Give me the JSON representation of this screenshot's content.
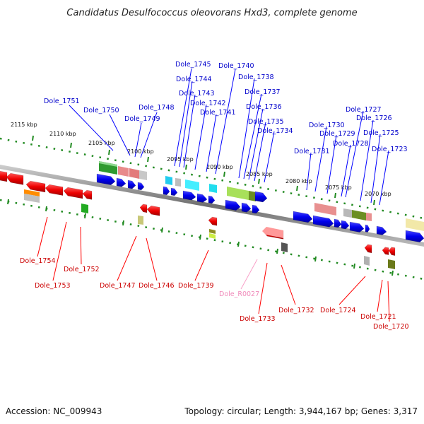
{
  "title": "Candidatus Desulfococcus oleovorans Hxd3, complete genome",
  "footer": {
    "accession": "Accession: NC_009943",
    "summary": "Topology: circular; Length: 3,944,167 bp; Genes: 3,317"
  },
  "colors": {
    "forward_label": "#0000cc",
    "reverse_label": "#cc0000",
    "rna_label": "#f08aba",
    "forward_gene": "#0000ee",
    "reverse_gene": "#ee0000",
    "backbone": "#888888",
    "tick_dots": "#228b22"
  },
  "kbp_ticks": [
    "2115 kbp",
    "2110 kbp",
    "2105 kbp",
    "2100 kbp",
    "2095 kbp",
    "2090 kbp",
    "2085 kbp",
    "2080 kbp",
    "2075 kbp",
    "2070 kbp"
  ],
  "top_labels": [
    "Dole_1751",
    "Dole_1750",
    "Dole_1749",
    "Dole_1748",
    "Dole_1745",
    "Dole_1744",
    "Dole_1743",
    "Dole_1742",
    "Dole_1741",
    "Dole_1740",
    "Dole_1738",
    "Dole_1737",
    "Dole_1736",
    "Dole_1735",
    "Dole_1734",
    "Dole_1731",
    "Dole_1730",
    "Dole_1729",
    "Dole_1728",
    "Dole_1727",
    "Dole_1726",
    "Dole_1725",
    "Dole_1723"
  ],
  "bottom_labels": [
    "Dole_1754",
    "Dole_1753",
    "Dole_1752",
    "Dole_1747",
    "Dole_1746",
    "Dole_1739",
    "Dole_R0027",
    "Dole_1733",
    "Dole_1732",
    "Dole_1724",
    "Dole_1721",
    "Dole_1720"
  ]
}
